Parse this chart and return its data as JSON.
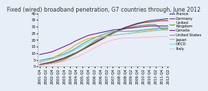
{
  "title": "Fixed (wired) broadband penetration, G7 countries through, June 2012",
  "x_labels": [
    "2001-Q4",
    "2002-Q2",
    "2002-Q4",
    "2003-Q2",
    "2003-Q4",
    "2004-Q2",
    "2004-Q4",
    "2005-Q2",
    "2005-Q4",
    "2006-Q2",
    "2006-Q4",
    "2007-Q2",
    "2007-Q4",
    "2008-Q2",
    "2008-Q4",
    "2009-Q2",
    "2009-Q4",
    "2010-Q2",
    "2010-Q4",
    "2011-Q2",
    "2011-Q4",
    "2012-Q2"
  ],
  "series": [
    {
      "name": "France",
      "color": "#1F3C88",
      "data": [
        1.5,
        2.5,
        3.5,
        5.0,
        6.5,
        8.5,
        10.5,
        13.0,
        15.5,
        18.0,
        20.5,
        23.0,
        25.5,
        27.5,
        29.5,
        31.0,
        32.5,
        33.5,
        34.5,
        35.0,
        35.5,
        36.0
      ]
    },
    {
      "name": "Germany",
      "color": "#B22222",
      "data": [
        1.2,
        2.2,
        3.2,
        4.5,
        6.0,
        8.0,
        10.0,
        12.5,
        15.0,
        17.5,
        20.0,
        22.5,
        25.0,
        27.0,
        29.0,
        30.5,
        32.0,
        33.0,
        33.5,
        34.0,
        34.5,
        34.5
      ]
    },
    {
      "name": "United\nKingdom",
      "color": "#6B8E23",
      "data": [
        0.8,
        1.5,
        2.5,
        3.5,
        5.0,
        7.5,
        10.0,
        13.0,
        16.0,
        19.0,
        21.5,
        23.5,
        25.5,
        27.0,
        28.5,
        29.5,
        30.5,
        31.0,
        31.5,
        31.5,
        28.2,
        28.5
      ]
    },
    {
      "name": "Canada",
      "color": "#6A0DAD",
      "data": [
        9.0,
        10.0,
        11.0,
        13.0,
        15.0,
        17.0,
        19.5,
        21.5,
        23.5,
        24.5,
        25.5,
        26.5,
        27.5,
        28.0,
        28.5,
        29.0,
        29.5,
        30.0,
        30.5,
        30.5,
        30.5,
        30.5
      ]
    },
    {
      "name": "United States",
      "color": "#20B2AA",
      "data": [
        4.5,
        5.5,
        6.5,
        8.0,
        9.5,
        11.5,
        14.0,
        17.0,
        19.5,
        21.5,
        23.5,
        25.0,
        26.5,
        26.5,
        26.5,
        26.5,
        27.0,
        27.5,
        28.0,
        28.5,
        29.0,
        29.0
      ]
    },
    {
      "name": "Japan",
      "color": "#FFA500",
      "data": [
        3.0,
        4.5,
        6.0,
        8.5,
        11.0,
        13.5,
        16.5,
        19.0,
        21.0,
        22.0,
        22.5,
        23.0,
        23.5,
        24.0,
        24.5,
        25.0,
        26.0,
        26.5,
        27.0,
        27.5,
        27.5,
        27.5
      ]
    },
    {
      "name": "OECD",
      "color": "#87CEEB",
      "data": [
        3.5,
        4.5,
        5.5,
        7.0,
        8.5,
        10.5,
        13.0,
        15.5,
        18.0,
        20.0,
        21.5,
        22.5,
        23.5,
        24.0,
        24.5,
        25.0,
        25.5,
        26.0,
        26.5,
        27.0,
        27.5,
        27.5
      ]
    },
    {
      "name": "Italy",
      "color": "#FFB6C1",
      "data": [
        1.0,
        1.5,
        2.0,
        3.0,
        4.0,
        5.5,
        7.0,
        9.0,
        11.5,
        14.0,
        16.5,
        18.5,
        20.0,
        21.0,
        21.5,
        21.5,
        21.5,
        22.0,
        22.0,
        22.5,
        22.5,
        22.5
      ]
    }
  ],
  "ylim": [
    0,
    40
  ],
  "yticks": [
    0,
    5,
    10,
    15,
    20,
    25,
    30,
    35,
    40
  ],
  "background_color": "#E8EEF8",
  "plot_bg_color": "#E8EEF8",
  "title_fontsize": 5.8,
  "tick_fontsize": 3.8,
  "legend_fontsize": 4.0,
  "line_width": 0.8
}
